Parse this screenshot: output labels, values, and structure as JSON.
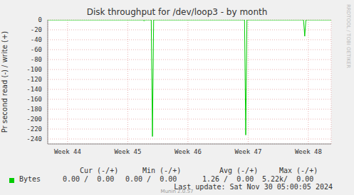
{
  "chart_data": {
    "type": "line",
    "title": "Disk throughput for /dev/loop3 - by month",
    "y_label": "Pr second read (-) / write (+)",
    "x": [
      43.67,
      45.25,
      45.27,
      45.29,
      45.39,
      45.41,
      45.43,
      46.94,
      46.96,
      46.98,
      47.92,
      47.94,
      47.96,
      48.38
    ],
    "series": [
      {
        "name": "Bytes",
        "color": "#00cc00",
        "values": [
          0,
          0,
          -2,
          0,
          0,
          -235,
          0,
          0,
          -232,
          0,
          0,
          -33,
          0,
          0
        ]
      }
    ],
    "xlim": [
      43.67,
      48.38
    ],
    "xticks": [
      {
        "value": 44,
        "label": "Week 44"
      },
      {
        "value": 45,
        "label": "Week 45"
      },
      {
        "value": 46,
        "label": "Week 46"
      },
      {
        "value": 47,
        "label": "Week 47"
      },
      {
        "value": 48,
        "label": "Week 48"
      }
    ],
    "ylim": [
      -250,
      0
    ],
    "yticks": [
      0,
      -20,
      -40,
      -60,
      -80,
      -100,
      -120,
      -140,
      -160,
      -180,
      -200,
      -220,
      -240
    ],
    "grid": true,
    "stats": {
      "headers": [
        "Cur (-/+)",
        "Min (-/+)",
        "Avg (-/+)",
        "Max (-/+)"
      ],
      "rows": [
        [
          "Bytes",
          "0.00 /  0.00",
          "0.00 /  0.00",
          "1.26 /  0.00",
          "5.22k/  0.00"
        ]
      ]
    },
    "annotations": [
      "Last update: Sat Nov 30 05:00:05 2024",
      "Munin 2.0.57",
      "RRDTOOL / TOBI OETIKER"
    ]
  }
}
